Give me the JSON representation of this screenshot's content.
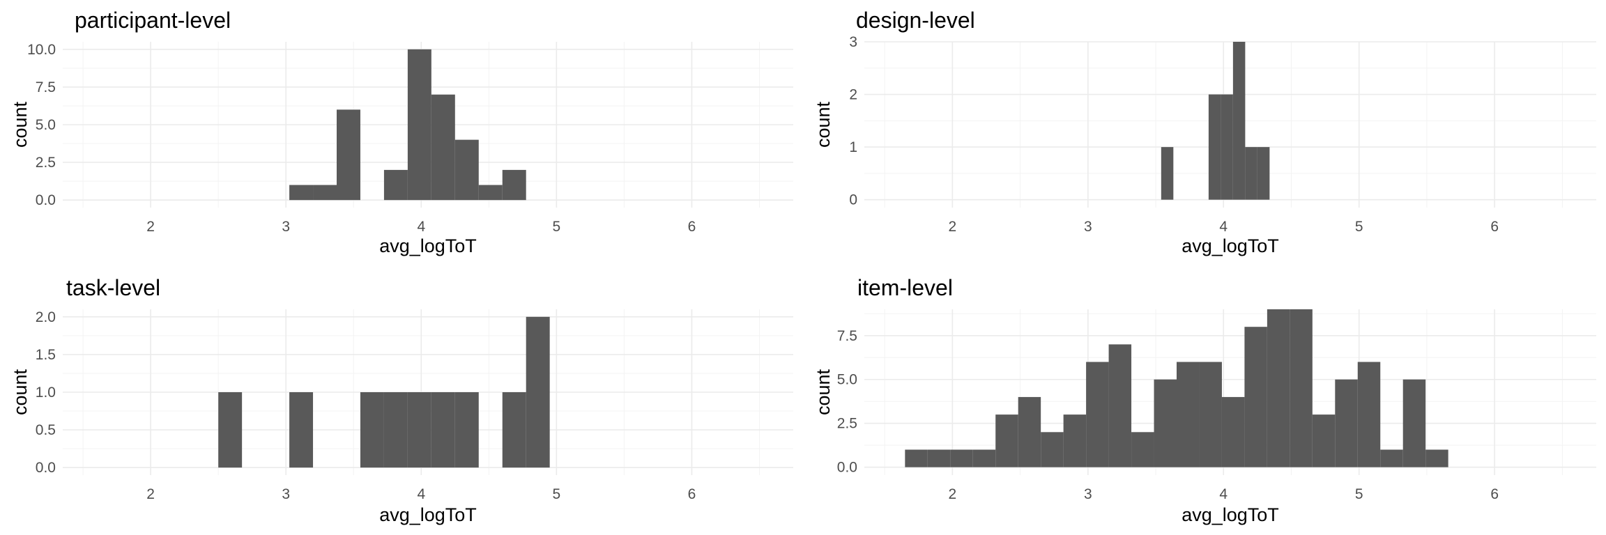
{
  "chart_data": [
    {
      "type": "bar",
      "title": "participant-level",
      "xlabel": "avg_logToT",
      "ylabel": "count",
      "xlim": [
        1.35,
        6.75
      ],
      "ylim": [
        -0.5,
        10.5
      ],
      "x_ticks": [
        2,
        3,
        4,
        5,
        6
      ],
      "y_ticks": [
        0.0,
        2.5,
        5.0,
        7.5,
        10.0
      ],
      "y_tick_labels": [
        "0.0",
        "2.5",
        "5.0",
        "7.5",
        "10.0"
      ],
      "bin_width": 0.175,
      "bins": [
        {
          "x0": 3.025,
          "x1": 3.2,
          "count": 1
        },
        {
          "x0": 3.2,
          "x1": 3.375,
          "count": 1
        },
        {
          "x0": 3.375,
          "x1": 3.55,
          "count": 6
        },
        {
          "x0": 3.725,
          "x1": 3.9,
          "count": 2
        },
        {
          "x0": 3.9,
          "x1": 4.075,
          "count": 10
        },
        {
          "x0": 4.075,
          "x1": 4.25,
          "count": 7
        },
        {
          "x0": 4.25,
          "x1": 4.425,
          "count": 4
        },
        {
          "x0": 4.425,
          "x1": 4.6,
          "count": 1
        },
        {
          "x0": 4.6,
          "x1": 4.775,
          "count": 2
        }
      ]
    },
    {
      "type": "bar",
      "title": "design-level",
      "xlabel": "avg_logToT",
      "ylabel": "count",
      "xlim": [
        1.35,
        6.75
      ],
      "ylim": [
        -0.15,
        3.0
      ],
      "x_ticks": [
        2,
        3,
        4,
        5,
        6
      ],
      "y_ticks": [
        0,
        1,
        2,
        3
      ],
      "y_tick_labels": [
        "0",
        "1",
        "2",
        "3"
      ],
      "bin_width": 0.09,
      "bins": [
        {
          "x0": 3.54,
          "x1": 3.63,
          "count": 1
        },
        {
          "x0": 3.89,
          "x1": 3.98,
          "count": 2
        },
        {
          "x0": 3.98,
          "x1": 4.07,
          "count": 2
        },
        {
          "x0": 4.07,
          "x1": 4.16,
          "count": 3
        },
        {
          "x0": 4.16,
          "x1": 4.25,
          "count": 1
        },
        {
          "x0": 4.25,
          "x1": 4.34,
          "count": 1
        }
      ]
    },
    {
      "type": "bar",
      "title": "task-level",
      "xlabel": "avg_logToT",
      "ylabel": "count",
      "xlim": [
        1.35,
        6.75
      ],
      "ylim": [
        -0.1,
        2.1
      ],
      "x_ticks": [
        2,
        3,
        4,
        5,
        6
      ],
      "y_ticks": [
        0.0,
        0.5,
        1.0,
        1.5,
        2.0
      ],
      "y_tick_labels": [
        "0.0",
        "0.5",
        "1.0",
        "1.5",
        "2.0"
      ],
      "bin_width": 0.175,
      "bins": [
        {
          "x0": 2.5,
          "x1": 2.675,
          "count": 1
        },
        {
          "x0": 3.025,
          "x1": 3.2,
          "count": 1
        },
        {
          "x0": 3.55,
          "x1": 3.725,
          "count": 1
        },
        {
          "x0": 3.725,
          "x1": 3.9,
          "count": 1
        },
        {
          "x0": 3.9,
          "x1": 4.075,
          "count": 1
        },
        {
          "x0": 4.075,
          "x1": 4.25,
          "count": 1
        },
        {
          "x0": 4.25,
          "x1": 4.425,
          "count": 1
        },
        {
          "x0": 4.6,
          "x1": 4.775,
          "count": 1
        },
        {
          "x0": 4.775,
          "x1": 4.95,
          "count": 2
        }
      ]
    },
    {
      "type": "bar",
      "title": "item-level",
      "xlabel": "avg_logToT",
      "ylabel": "count",
      "xlim": [
        1.35,
        6.75
      ],
      "ylim": [
        -0.45,
        9.0
      ],
      "x_ticks": [
        2,
        3,
        4,
        5,
        6
      ],
      "y_ticks": [
        0.0,
        2.5,
        5.0,
        7.5
      ],
      "y_tick_labels": [
        "0.0",
        "2.5",
        "5.0",
        "7.5"
      ],
      "bin_width": 0.167,
      "bins": [
        {
          "x0": 1.65,
          "x1": 1.817,
          "count": 1
        },
        {
          "x0": 1.817,
          "x1": 1.984,
          "count": 1
        },
        {
          "x0": 1.984,
          "x1": 2.151,
          "count": 1
        },
        {
          "x0": 2.151,
          "x1": 2.318,
          "count": 1
        },
        {
          "x0": 2.318,
          "x1": 2.485,
          "count": 3
        },
        {
          "x0": 2.485,
          "x1": 2.652,
          "count": 4
        },
        {
          "x0": 2.652,
          "x1": 2.819,
          "count": 2
        },
        {
          "x0": 2.819,
          "x1": 2.986,
          "count": 3
        },
        {
          "x0": 2.986,
          "x1": 3.153,
          "count": 6
        },
        {
          "x0": 3.153,
          "x1": 3.32,
          "count": 7
        },
        {
          "x0": 3.32,
          "x1": 3.487,
          "count": 2
        },
        {
          "x0": 3.487,
          "x1": 3.654,
          "count": 5
        },
        {
          "x0": 3.654,
          "x1": 3.821,
          "count": 6
        },
        {
          "x0": 3.821,
          "x1": 3.988,
          "count": 6
        },
        {
          "x0": 3.988,
          "x1": 4.155,
          "count": 4
        },
        {
          "x0": 4.155,
          "x1": 4.322,
          "count": 8
        },
        {
          "x0": 4.322,
          "x1": 4.489,
          "count": 9
        },
        {
          "x0": 4.489,
          "x1": 4.656,
          "count": 9
        },
        {
          "x0": 4.656,
          "x1": 4.823,
          "count": 3
        },
        {
          "x0": 4.823,
          "x1": 4.99,
          "count": 5
        },
        {
          "x0": 4.99,
          "x1": 5.157,
          "count": 6
        },
        {
          "x0": 5.157,
          "x1": 5.324,
          "count": 1
        },
        {
          "x0": 5.324,
          "x1": 5.491,
          "count": 5
        },
        {
          "x0": 5.491,
          "x1": 5.658,
          "count": 1
        }
      ]
    }
  ],
  "colors": {
    "bar_fill": "#595959",
    "grid": "#ebebeb",
    "tick_text": "#4d4d4d",
    "title_text": "#000000"
  }
}
